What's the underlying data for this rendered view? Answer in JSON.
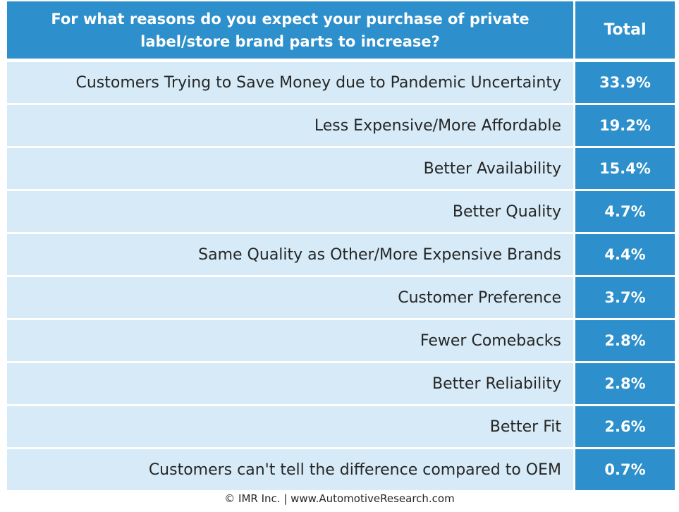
{
  "chart_data": {
    "type": "table",
    "title": "For what reasons do you expect your purchase of private label/store brand parts to increase?",
    "column_header": "Total",
    "rows": [
      {
        "label": "Customers Trying to Save Money due to Pandemic Uncertainty",
        "value": "33.9%"
      },
      {
        "label": "Less Expensive/More Affordable",
        "value": "19.2%"
      },
      {
        "label": "Better Availability",
        "value": "15.4%"
      },
      {
        "label": "Better Quality",
        "value": "4.7%"
      },
      {
        "label": "Same Quality as Other/More  Expensive Brands",
        "value": "4.4%"
      },
      {
        "label": "Customer Preference",
        "value": "3.7%"
      },
      {
        "label": "Fewer Comebacks",
        "value": "2.8%"
      },
      {
        "label": "Better Reliability",
        "value": "2.8%"
      },
      {
        "label": "Better Fit",
        "value": "2.6%"
      },
      {
        "label": "Customers can't tell the difference compared to OEM",
        "value": "0.7%"
      }
    ]
  },
  "footer": "© IMR Inc. | www.AutomotiveResearch.com",
  "colors": {
    "header_bg": "#2d8fcb",
    "row_bg": "#d6ebf7",
    "value_bg": "#2d8fcb"
  }
}
